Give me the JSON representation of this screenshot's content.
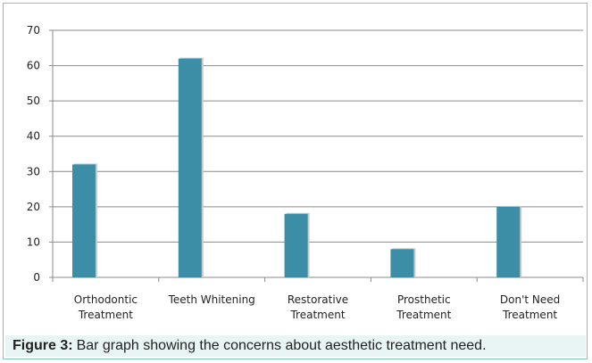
{
  "caption": {
    "label": "Figure 3:",
    "text": "Bar graph showing the concerns about aesthetic treatment need."
  },
  "chart_data": {
    "type": "bar",
    "categories": [
      [
        "Orthodontic",
        "Treatment"
      ],
      [
        "Teeth Whitening"
      ],
      [
        "Restorative",
        "Treatment"
      ],
      [
        "Prosthetic",
        "Treatment"
      ],
      [
        "Don't Need",
        "Treatment"
      ]
    ],
    "values": [
      32,
      62,
      18,
      8,
      20
    ],
    "yticks": [
      0,
      10,
      20,
      30,
      40,
      50,
      60,
      70
    ],
    "ylim": [
      0,
      70
    ],
    "grid": true,
    "bar_color": "#3b8ea5",
    "bar_shadow_color": "#c9c9c9",
    "legend": "none"
  }
}
